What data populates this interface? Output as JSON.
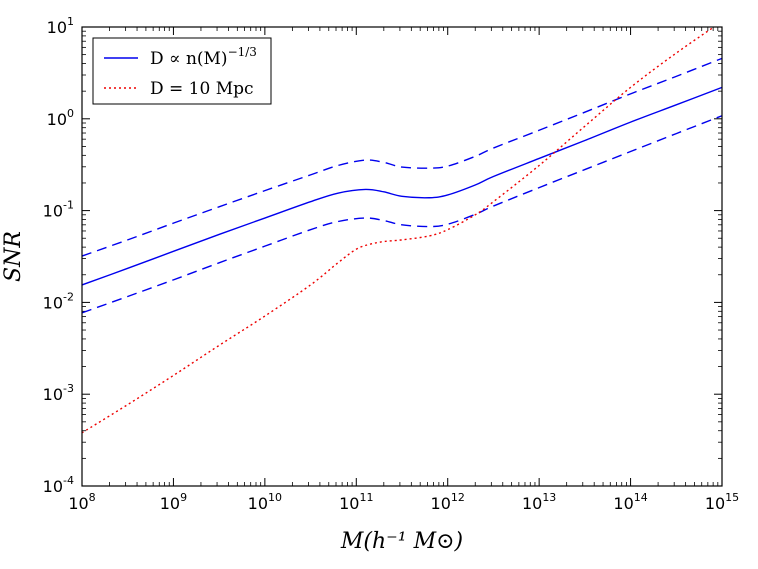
{
  "chart_data": {
    "type": "line",
    "title": "",
    "xlabel": "M(h⁻¹ M⊙)",
    "ylabel": "SNR",
    "xscale": "log",
    "yscale": "log",
    "xlim": [
      100000000.0,
      1000000000000000.0
    ],
    "ylim": [
      0.0001,
      10
    ],
    "grid": false,
    "legend_position": "top-left",
    "x_ticks": [
      {
        "base": "10",
        "exp": "8",
        "value": 100000000.0
      },
      {
        "base": "10",
        "exp": "9",
        "value": 1000000000.0
      },
      {
        "base": "10",
        "exp": "10",
        "value": 10000000000.0
      },
      {
        "base": "10",
        "exp": "11",
        "value": 100000000000.0
      },
      {
        "base": "10",
        "exp": "12",
        "value": 1000000000000.0
      },
      {
        "base": "10",
        "exp": "13",
        "value": 10000000000000.0
      },
      {
        "base": "10",
        "exp": "14",
        "value": 100000000000000.0
      },
      {
        "base": "10",
        "exp": "15",
        "value": 1000000000000000.0
      }
    ],
    "y_ticks": [
      {
        "base": "10",
        "exp": "-4",
        "value": 0.0001
      },
      {
        "base": "10",
        "exp": "-3",
        "value": 0.001
      },
      {
        "base": "10",
        "exp": "-2",
        "value": 0.01
      },
      {
        "base": "10",
        "exp": "-1",
        "value": 0.1
      },
      {
        "base": "10",
        "exp": "0",
        "value": 1
      },
      {
        "base": "10",
        "exp": "1",
        "value": 10
      }
    ],
    "series": [
      {
        "name": "D ∝ n(M)^{-1/3}",
        "legend_main": "D ∝ n(M)",
        "legend_sup": "−1/3",
        "color": "#0000ee",
        "style": "solid",
        "in_legend": true,
        "x": [
          100000000.0,
          316000000.0,
          1000000000.0,
          3160000000.0,
          10000000000.0,
          31600000000.0,
          63000000000.0,
          126000000000.0,
          200000000000.0,
          316000000000.0,
          630000000000.0,
          1000000000000.0,
          2000000000000.0,
          3160000000000.0,
          10000000000000.0,
          31600000000000.0,
          100000000000000.0,
          316000000000000.0,
          1000000000000000.0
        ],
        "y": [
          0.0155,
          0.0235,
          0.036,
          0.055,
          0.083,
          0.125,
          0.155,
          0.17,
          0.16,
          0.143,
          0.138,
          0.148,
          0.19,
          0.235,
          0.37,
          0.58,
          0.92,
          1.42,
          2.2
        ]
      },
      {
        "name": "upper bound",
        "color": "#0000ee",
        "style": "dashed",
        "in_legend": false,
        "x": [
          100000000.0,
          316000000.0,
          1000000000.0,
          3160000000.0,
          10000000000.0,
          31600000000.0,
          63000000000.0,
          126000000000.0,
          200000000000.0,
          316000000000.0,
          630000000000.0,
          1000000000000.0,
          2000000000000.0,
          3160000000000.0,
          10000000000000.0,
          31600000000000.0,
          100000000000000.0,
          316000000000000.0,
          1000000000000000.0
        ],
        "y": [
          0.032,
          0.048,
          0.073,
          0.11,
          0.165,
          0.245,
          0.31,
          0.355,
          0.335,
          0.298,
          0.29,
          0.305,
          0.39,
          0.48,
          0.75,
          1.18,
          1.87,
          2.9,
          4.55
        ]
      },
      {
        "name": "lower bound",
        "color": "#0000ee",
        "style": "dashed",
        "in_legend": false,
        "x": [
          100000000.0,
          316000000.0,
          1000000000.0,
          3160000000.0,
          10000000000.0,
          31600000000.0,
          63000000000.0,
          126000000000.0,
          200000000000.0,
          316000000000.0,
          630000000000.0,
          1000000000000.0,
          2000000000000.0,
          3160000000000.0,
          10000000000000.0,
          31600000000000.0,
          100000000000000.0,
          316000000000000.0,
          1000000000000000.0
        ],
        "y": [
          0.0077,
          0.0116,
          0.0176,
          0.027,
          0.041,
          0.062,
          0.076,
          0.083,
          0.078,
          0.07,
          0.067,
          0.071,
          0.091,
          0.112,
          0.178,
          0.28,
          0.44,
          0.69,
          1.08
        ]
      },
      {
        "name": "D = 10 Mpc",
        "legend_main": "D = 10 Mpc",
        "color": "#ee0000",
        "style": "dotted",
        "in_legend": true,
        "x": [
          100000000.0,
          316000000.0,
          1000000000.0,
          3160000000.0,
          10000000000.0,
          31600000000.0,
          63000000000.0,
          100000000000.0,
          141000000000.0,
          200000000000.0,
          316000000000.0,
          630000000000.0,
          1000000000000.0,
          2000000000000.0,
          3160000000000.0,
          10000000000000.0,
          31600000000000.0,
          100000000000000.0,
          316000000000000.0,
          1000000000000000.0
        ],
        "y": [
          0.00038,
          0.00077,
          0.0016,
          0.0034,
          0.0071,
          0.0155,
          0.027,
          0.038,
          0.043,
          0.046,
          0.048,
          0.053,
          0.062,
          0.09,
          0.125,
          0.31,
          0.83,
          2.2,
          5.2,
          11.5
        ]
      }
    ]
  }
}
